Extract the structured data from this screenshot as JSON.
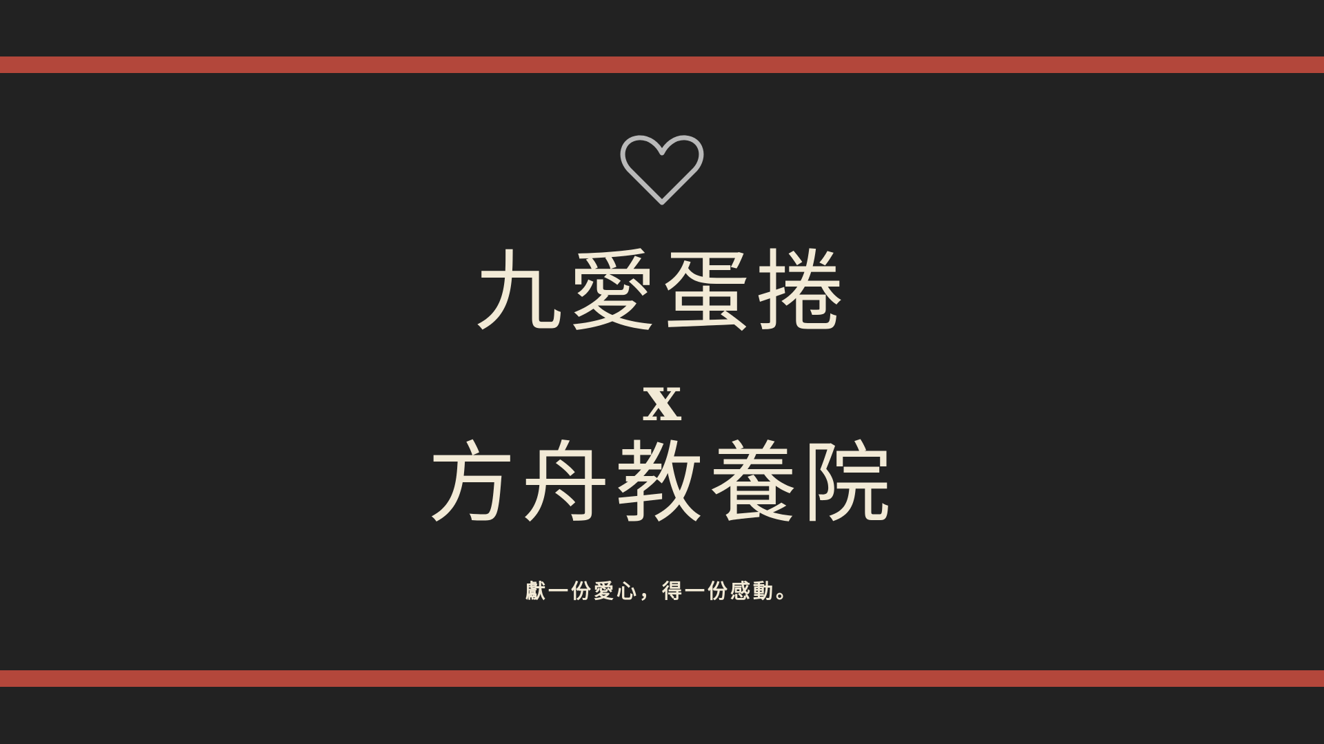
{
  "colors": {
    "background": "#222222",
    "stripe": "#b3473b",
    "text": "#f2ead6",
    "heart": "#b9b9b9"
  },
  "icon": "heart-outline-icon",
  "title": {
    "brand": "九愛蛋捲",
    "cross": "x",
    "partner": "方舟教養院"
  },
  "slogan": "獻一份愛心，得一份感動。"
}
